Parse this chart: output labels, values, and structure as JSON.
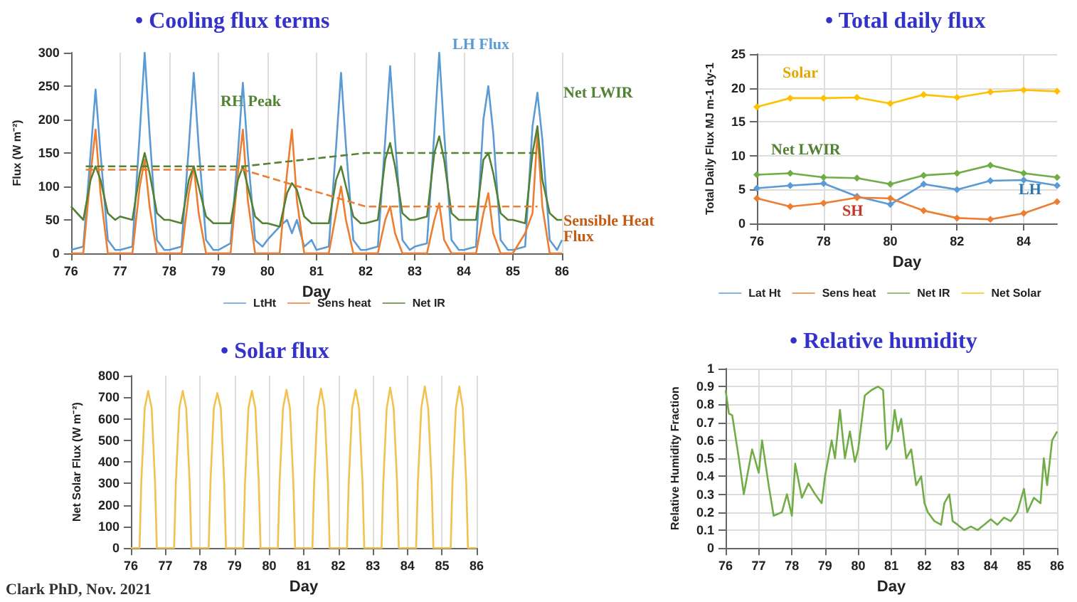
{
  "chart_data": [
    {
      "type": "line",
      "title": "• Cooling flux terms",
      "xlabel": "Day",
      "ylabel": "Flux (W m⁻²)",
      "xlim": [
        76,
        86
      ],
      "xticks": [
        76,
        77,
        78,
        79,
        80,
        81,
        82,
        83,
        84,
        85,
        86
      ],
      "ylim": [
        0,
        300
      ],
      "yticks": [
        0,
        50,
        100,
        150,
        200,
        250,
        300
      ],
      "grid": "x",
      "legend": "bottom",
      "x": [
        76,
        76.25,
        76.4,
        76.5,
        76.6,
        76.75,
        76.9,
        77,
        77.25,
        77.4,
        77.5,
        77.6,
        77.75,
        77.9,
        78,
        78.25,
        78.4,
        78.5,
        78.6,
        78.75,
        78.9,
        79,
        79.25,
        79.4,
        79.5,
        79.6,
        79.75,
        79.9,
        80,
        80.25,
        80.4,
        80.5,
        80.6,
        80.75,
        80.9,
        81,
        81.25,
        81.4,
        81.5,
        81.6,
        81.75,
        81.9,
        82,
        82.25,
        82.4,
        82.5,
        82.6,
        82.75,
        82.9,
        83,
        83.25,
        83.4,
        83.5,
        83.6,
        83.75,
        83.9,
        84,
        84.25,
        84.4,
        84.5,
        84.6,
        84.75,
        84.9,
        85,
        85.25,
        85.4,
        85.5,
        85.6,
        85.75,
        85.9,
        86
      ],
      "series": [
        {
          "name": "LtHt",
          "color": "#5b9bd5",
          "values": [
            5,
            10,
            150,
            245,
            150,
            20,
            5,
            5,
            10,
            180,
            300,
            180,
            20,
            5,
            5,
            10,
            160,
            270,
            160,
            20,
            5,
            5,
            15,
            150,
            255,
            150,
            20,
            10,
            20,
            40,
            50,
            30,
            50,
            10,
            20,
            5,
            10,
            160,
            270,
            160,
            20,
            5,
            5,
            10,
            170,
            280,
            170,
            20,
            5,
            10,
            15,
            180,
            300,
            180,
            20,
            5,
            5,
            10,
            200,
            250,
            180,
            20,
            5,
            5,
            10,
            190,
            240,
            170,
            20,
            5,
            20
          ]
        },
        {
          "name": "Sens heat",
          "color": "#ed7d31",
          "values": [
            0,
            0,
            120,
            185,
            90,
            0,
            0,
            0,
            0,
            100,
            140,
            70,
            0,
            0,
            0,
            0,
            90,
            130,
            60,
            0,
            0,
            0,
            0,
            120,
            185,
            80,
            0,
            0,
            0,
            0,
            120,
            185,
            80,
            0,
            0,
            0,
            0,
            60,
            100,
            50,
            0,
            0,
            0,
            0,
            50,
            70,
            30,
            0,
            0,
            0,
            0,
            50,
            75,
            20,
            0,
            0,
            0,
            0,
            60,
            90,
            30,
            0,
            0,
            0,
            30,
            60,
            180,
            70,
            0,
            0,
            0
          ]
        },
        {
          "name": "Net IR",
          "color": "#548235",
          "values": [
            70,
            50,
            110,
            130,
            110,
            60,
            50,
            55,
            50,
            120,
            150,
            120,
            60,
            50,
            50,
            45,
            110,
            130,
            100,
            55,
            45,
            45,
            45,
            110,
            130,
            100,
            55,
            45,
            45,
            40,
            90,
            105,
            95,
            55,
            45,
            45,
            45,
            110,
            130,
            100,
            55,
            45,
            45,
            50,
            140,
            165,
            130,
            60,
            50,
            50,
            55,
            150,
            175,
            140,
            60,
            50,
            50,
            50,
            140,
            150,
            120,
            60,
            50,
            50,
            45,
            150,
            190,
            110,
            60,
            50,
            50
          ]
        },
        {
          "color": "#ed7d31",
          "line_style": "dashed",
          "x": [
            76.3,
            79.5,
            82,
            85.5
          ],
          "values": [
            125,
            125,
            70,
            70
          ]
        },
        {
          "color": "#548235",
          "line_style": "dashed",
          "x": [
            76.3,
            79.5,
            82,
            85.5
          ],
          "values": [
            130,
            130,
            150,
            150
          ]
        }
      ],
      "annotations": [
        "LH Flux",
        "RH Peak",
        "Net LWIR",
        "Sensible Heat Flux"
      ]
    },
    {
      "type": "line",
      "title": "• Total daily flux",
      "xlabel": "Day",
      "ylabel": "Total Daily Flux MJ m-1 dy-1",
      "xlim": [
        76,
        85
      ],
      "xticks": [
        76,
        78,
        80,
        82,
        84
      ],
      "ylim": [
        0,
        25
      ],
      "yticks": [
        0,
        5,
        10,
        15,
        20,
        25
      ],
      "grid": true,
      "legend": "bottom",
      "marker": "diamond",
      "x": [
        76,
        77,
        78,
        79,
        80,
        81,
        82,
        83,
        84,
        85
      ],
      "series": [
        {
          "name": "Lat Ht",
          "color": "#5b9bd5",
          "values": [
            5.2,
            5.6,
            5.9,
            4,
            2.8,
            5.8,
            5,
            6.3,
            6.4,
            5.6
          ]
        },
        {
          "name": "Sens heat",
          "color": "#ed7d31",
          "values": [
            3.7,
            2.5,
            3,
            3.8,
            3.7,
            1.9,
            0.8,
            0.6,
            1.5,
            3.2
          ]
        },
        {
          "name": "Net IR",
          "color": "#70ad47",
          "values": [
            7.2,
            7.4,
            6.8,
            6.7,
            5.8,
            7.1,
            7.4,
            8.6,
            7.4,
            6.8
          ]
        },
        {
          "name": "Net Solar",
          "color": "#ffc000",
          "values": [
            17.2,
            18.5,
            18.5,
            18.6,
            17.7,
            19,
            18.6,
            19.4,
            19.7,
            19.5
          ]
        }
      ],
      "annotations": [
        "Solar",
        "Net LWIR",
        "LH",
        "SH"
      ]
    },
    {
      "type": "line",
      "title": "• Solar flux",
      "xlabel": "Day",
      "ylabel": "Net Solar Flux (W m⁻²)",
      "xlim": [
        76,
        86
      ],
      "xticks": [
        76,
        77,
        78,
        79,
        80,
        81,
        82,
        83,
        84,
        85,
        86
      ],
      "ylim": [
        0,
        800
      ],
      "yticks": [
        0,
        100,
        200,
        300,
        400,
        500,
        600,
        700,
        800
      ],
      "grid": "x",
      "x": [
        76,
        76.25,
        76.3,
        76.4,
        76.5,
        76.6,
        76.7,
        76.75,
        77,
        77.25,
        77.3,
        77.4,
        77.5,
        77.6,
        77.7,
        77.75,
        78,
        78.25,
        78.3,
        78.4,
        78.5,
        78.6,
        78.7,
        78.75,
        79,
        79.25,
        79.3,
        79.4,
        79.5,
        79.6,
        79.7,
        79.75,
        80,
        80.25,
        80.3,
        80.4,
        80.5,
        80.6,
        80.7,
        80.75,
        81,
        81.25,
        81.3,
        81.4,
        81.5,
        81.6,
        81.7,
        81.75,
        82,
        82.25,
        82.3,
        82.4,
        82.5,
        82.6,
        82.7,
        82.75,
        83,
        83.25,
        83.3,
        83.4,
        83.5,
        83.6,
        83.7,
        83.75,
        84,
        84.25,
        84.3,
        84.4,
        84.5,
        84.6,
        84.7,
        84.75,
        85,
        85.25,
        85.3,
        85.4,
        85.5,
        85.6,
        85.7,
        85.75,
        86
      ],
      "series": [
        {
          "color": "#f2c14e",
          "values": [
            0,
            0,
            300,
            650,
            730,
            650,
            300,
            0,
            0,
            0,
            300,
            650,
            730,
            650,
            300,
            0,
            0,
            0,
            300,
            650,
            720,
            650,
            300,
            0,
            0,
            0,
            300,
            650,
            730,
            650,
            300,
            0,
            0,
            0,
            300,
            650,
            735,
            650,
            300,
            0,
            0,
            0,
            300,
            650,
            740,
            650,
            300,
            0,
            0,
            0,
            300,
            650,
            735,
            650,
            300,
            0,
            0,
            0,
            300,
            650,
            745,
            650,
            300,
            0,
            0,
            0,
            300,
            650,
            750,
            650,
            300,
            0,
            0,
            0,
            300,
            650,
            750,
            650,
            300,
            0,
            0
          ]
        }
      ],
      "annotations": [
        "Clark PhD, Nov. 2021"
      ]
    },
    {
      "type": "line",
      "title": "• Relative humidity",
      "xlabel": "Day",
      "ylabel": "Relative Humidity Fraction",
      "xlim": [
        76,
        86
      ],
      "xticks": [
        76,
        77,
        78,
        79,
        80,
        81,
        82,
        83,
        84,
        85,
        86
      ],
      "ylim": [
        0,
        1
      ],
      "yticks": [
        0,
        0.1,
        0.2,
        0.3,
        0.4,
        0.5,
        0.6,
        0.7,
        0.8,
        0.9,
        1
      ],
      "grid": true,
      "x": [
        76,
        76.1,
        76.2,
        76.4,
        76.55,
        76.7,
        76.8,
        77,
        77.1,
        77.3,
        77.45,
        77.7,
        77.85,
        78,
        78.1,
        78.3,
        78.5,
        78.7,
        78.9,
        79,
        79.2,
        79.3,
        79.45,
        79.6,
        79.75,
        79.9,
        80,
        80.2,
        80.4,
        80.6,
        80.75,
        80.85,
        81,
        81.1,
        81.2,
        81.3,
        81.45,
        81.6,
        81.75,
        81.9,
        82,
        82.1,
        82.3,
        82.5,
        82.6,
        82.75,
        82.85,
        83,
        83.2,
        83.4,
        83.6,
        83.8,
        84,
        84.2,
        84.4,
        84.6,
        84.8,
        85,
        85.1,
        85.3,
        85.5,
        85.6,
        85.7,
        85.85,
        86
      ],
      "series": [
        {
          "color": "#70ad47",
          "values": [
            0.88,
            0.75,
            0.74,
            0.5,
            0.3,
            0.45,
            0.55,
            0.42,
            0.6,
            0.35,
            0.18,
            0.2,
            0.3,
            0.18,
            0.47,
            0.28,
            0.36,
            0.3,
            0.25,
            0.4,
            0.6,
            0.5,
            0.77,
            0.5,
            0.65,
            0.48,
            0.55,
            0.85,
            0.88,
            0.9,
            0.88,
            0.55,
            0.6,
            0.77,
            0.65,
            0.72,
            0.5,
            0.55,
            0.35,
            0.4,
            0.25,
            0.2,
            0.15,
            0.13,
            0.25,
            0.3,
            0.15,
            0.13,
            0.1,
            0.12,
            0.1,
            0.13,
            0.16,
            0.13,
            0.17,
            0.15,
            0.2,
            0.33,
            0.2,
            0.28,
            0.25,
            0.5,
            0.35,
            0.6,
            0.65
          ]
        }
      ]
    }
  ]
}
